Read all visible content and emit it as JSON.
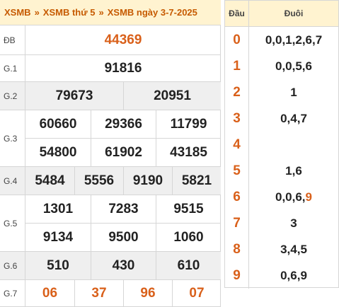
{
  "header": {
    "crumb1": "XSMB",
    "crumb2": "XSMB thứ 5",
    "crumb3": "XSMB ngày 3-7-2025",
    "separator": "»"
  },
  "prizes": {
    "db": {
      "label": "ĐB",
      "values": [
        "44369"
      ]
    },
    "g1": {
      "label": "G.1",
      "values": [
        "91816"
      ]
    },
    "g2": {
      "label": "G.2",
      "values": [
        "79673",
        "20951"
      ]
    },
    "g3": {
      "label": "G.3",
      "values": [
        "60660",
        "29366",
        "11799",
        "54800",
        "61902",
        "43185"
      ]
    },
    "g4": {
      "label": "G.4",
      "values": [
        "5484",
        "5556",
        "9190",
        "5821"
      ]
    },
    "g5": {
      "label": "G.5",
      "values": [
        "1301",
        "7283",
        "9515",
        "9134",
        "9500",
        "1060"
      ]
    },
    "g6": {
      "label": "G.6",
      "values": [
        "510",
        "430",
        "610"
      ]
    },
    "g7": {
      "label": "G.7",
      "values": [
        "06",
        "37",
        "96",
        "07"
      ]
    }
  },
  "loto": {
    "head_label": "Đầu",
    "tail_label": "Đuôi",
    "rows": [
      {
        "head": "0",
        "tails": "0,0,1,2,6,7"
      },
      {
        "head": "1",
        "tails": "0,0,5,6"
      },
      {
        "head": "2",
        "tails": "1"
      },
      {
        "head": "3",
        "tails": "0,4,7"
      },
      {
        "head": "4",
        "tails": ""
      },
      {
        "head": "5",
        "tails": "1,6"
      },
      {
        "head": "6",
        "tails_pre": "0,0,6,",
        "tails_hl": "9"
      },
      {
        "head": "7",
        "tails": "3"
      },
      {
        "head": "8",
        "tails": "3,4,5"
      },
      {
        "head": "9",
        "tails": "0,6,9"
      }
    ]
  },
  "colors": {
    "accent": "#d9601a",
    "header_bg": "#fff3d0",
    "alt_row": "#efefef",
    "border": "#d6d6d6"
  }
}
